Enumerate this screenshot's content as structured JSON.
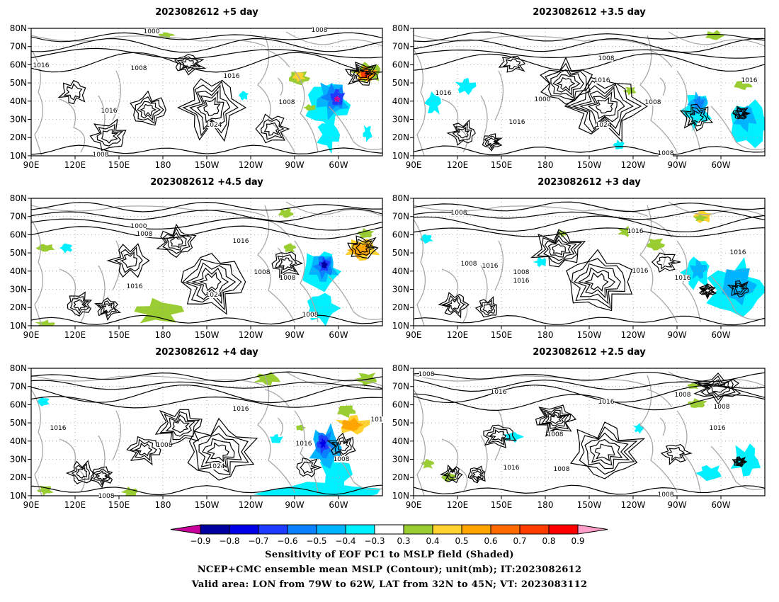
{
  "panels": [
    {
      "title": "2023082612  +5 day",
      "contour_labels": [
        "1000",
        "1008",
        "1016",
        "1016",
        "1008",
        "1024",
        "1016",
        "1008",
        "1008"
      ]
    },
    {
      "title": "2023082612  +3.5 day",
      "contour_labels": [
        "1008",
        "1016",
        "1000",
        "1016",
        "1008",
        "1016",
        "1024",
        "1008",
        "1016"
      ]
    },
    {
      "title": "2023082612  +4.5 day",
      "contour_labels": [
        "1000",
        "1008",
        "1016",
        "1008",
        "1008",
        "1016",
        "1024",
        "1008"
      ]
    },
    {
      "title": "2023082612  +3 day",
      "contour_labels": [
        "1008",
        "1016",
        "1008",
        "1016",
        "1008",
        "1016",
        "1016",
        "1016",
        "1016"
      ]
    },
    {
      "title": "2023082612  +4 day",
      "contour_labels": [
        "1016",
        "1016",
        "1008",
        "1016",
        "1024",
        "1008",
        "101",
        "1008"
      ]
    },
    {
      "title": "2023082612  +2.5 day",
      "contour_labels": [
        "1008",
        "1016",
        "1008",
        "1016",
        "1008",
        "1008",
        "1016",
        "1008",
        "1016",
        "1008"
      ]
    }
  ],
  "lon_ticks": [
    "90E",
    "120E",
    "150E",
    "180",
    "150W",
    "120W",
    "90W",
    "60W"
  ],
  "lat_ticks": [
    "80N",
    "70N",
    "60N",
    "50N",
    "40N",
    "30N",
    "20N",
    "10N"
  ],
  "colorbar": {
    "labels": [
      "-0.9",
      "-0.8",
      "-0.7",
      "-0.6",
      "-0.5",
      "-0.4",
      "-0.3",
      "0.3",
      "0.4",
      "0.5",
      "0.6",
      "0.7",
      "0.8",
      "0.9"
    ],
    "colors": [
      "#0000a0",
      "#0000e6",
      "#1e3cff",
      "#0a82ff",
      "#00b4ff",
      "#00f0ff",
      "#ffffff",
      "#9acd32",
      "#ffd230",
      "#ffa500",
      "#ff6a00",
      "#ff3c00",
      "#ff0000"
    ],
    "low_end": "#c8009c",
    "high_end": "#ff9ec8"
  },
  "footer": {
    "line1": "Sensitivity of EOF PC1 to MSLP field (Shaded)",
    "line2": "NCEP+CMC ensemble mean MSLP (Contour); unit(mb); IT:2023082612",
    "line3": "Valid area: LON from 79W to 62W, LAT from 32N to 45N; VT: 2023083112"
  }
}
